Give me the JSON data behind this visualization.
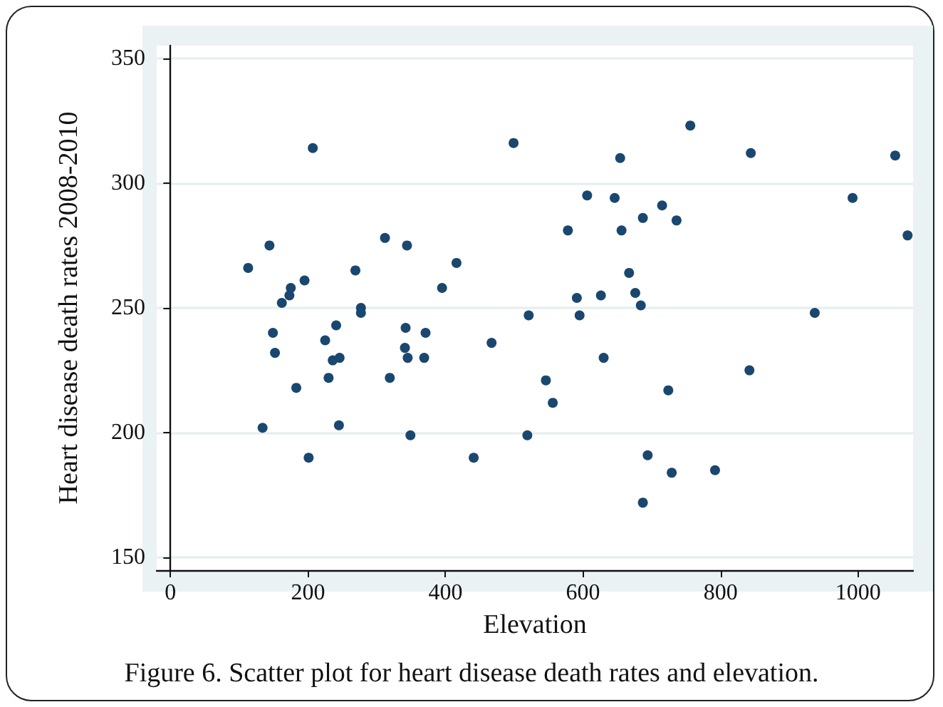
{
  "chart_data": {
    "type": "scatter",
    "xlabel": "Elevation",
    "ylabel": "Heart disease death rates 2008-2010",
    "annotations": [
      "Figure 6. Scatter plot for heart disease death rates and elevation."
    ],
    "xlim": [
      -20,
      1080
    ],
    "xticks": [
      0,
      200,
      400,
      600,
      800,
      1000
    ],
    "ylim": [
      145,
      355
    ],
    "yticks": [
      150,
      200,
      250,
      300,
      350
    ],
    "grid": "y",
    "marker": "circle",
    "series": [
      {
        "color": "#1a476f",
        "x": [
          207,
          499,
          144,
          113,
          195,
          175,
          173,
          162,
          269,
          312,
          344,
          416,
          395,
          277,
          277,
          521,
          241,
          149,
          342,
          371,
          225,
          152,
          467,
          341,
          345,
          369,
          236,
          246,
          230,
          319,
          183,
          134,
          245,
          349,
          519,
          201,
          441,
          756,
          654,
          844,
          1054,
          606,
          646,
          715,
          992,
          687,
          736,
          578,
          656,
          1072,
          667,
          591,
          626,
          676,
          684,
          595,
          937,
          630,
          546,
          842,
          556,
          724,
          694,
          729,
          792,
          687
        ],
        "values": [
          314,
          316,
          275,
          266,
          261,
          258,
          255,
          252,
          265,
          278,
          275,
          268,
          258,
          250,
          248,
          247,
          243,
          240,
          242,
          240,
          237,
          232,
          236,
          234,
          230,
          230,
          229,
          230,
          222,
          222,
          218,
          202,
          203,
          199,
          199,
          190,
          190,
          323,
          310,
          312,
          311,
          295,
          294,
          291,
          294,
          286,
          285,
          281,
          281,
          279,
          264,
          254,
          255,
          256,
          251,
          247,
          248,
          230,
          221,
          225,
          212,
          217,
          191,
          184,
          185,
          172
        ]
      }
    ]
  }
}
